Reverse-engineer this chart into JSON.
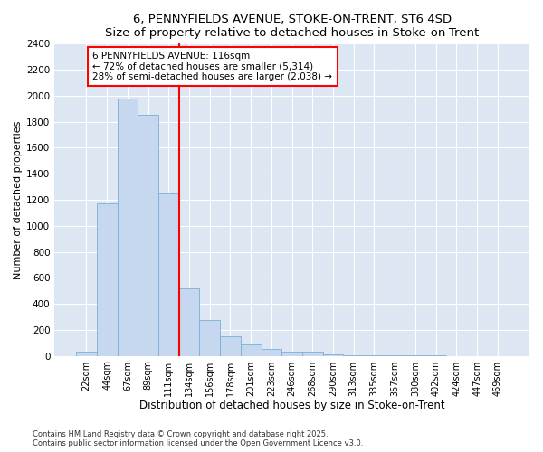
{
  "title1": "6, PENNYFIELDS AVENUE, STOKE-ON-TRENT, ST6 4SD",
  "title2": "Size of property relative to detached houses in Stoke-on-Trent",
  "xlabel": "Distribution of detached houses by size in Stoke-on-Trent",
  "ylabel": "Number of detached properties",
  "categories": [
    "22sqm",
    "44sqm",
    "67sqm",
    "89sqm",
    "111sqm",
    "134sqm",
    "156sqm",
    "178sqm",
    "201sqm",
    "223sqm",
    "246sqm",
    "268sqm",
    "290sqm",
    "313sqm",
    "335sqm",
    "357sqm",
    "380sqm",
    "402sqm",
    "424sqm",
    "447sqm",
    "469sqm"
  ],
  "values": [
    30,
    1175,
    1975,
    1850,
    1250,
    520,
    275,
    150,
    85,
    50,
    30,
    35,
    10,
    5,
    3,
    2,
    1,
    1,
    0,
    0,
    0
  ],
  "bar_color": "#c5d8ef",
  "bar_edge_color": "#7bafd4",
  "vline_x": 4.5,
  "vline_color": "red",
  "annotation_line1": "6 PENNYFIELDS AVENUE: 116sqm",
  "annotation_line2": "← 72% of detached houses are smaller (5,314)",
  "annotation_line3": "28% of semi-detached houses are larger (2,038) →",
  "annotation_box_color": "white",
  "annotation_box_edge": "red",
  "ylim": [
    0,
    2400
  ],
  "yticks": [
    0,
    200,
    400,
    600,
    800,
    1000,
    1200,
    1400,
    1600,
    1800,
    2000,
    2200,
    2400
  ],
  "bg_color": "#dce7f3",
  "grid_color": "#ffffff",
  "footer1": "Contains HM Land Registry data © Crown copyright and database right 2025.",
  "footer2": "Contains public sector information licensed under the Open Government Licence v3.0."
}
